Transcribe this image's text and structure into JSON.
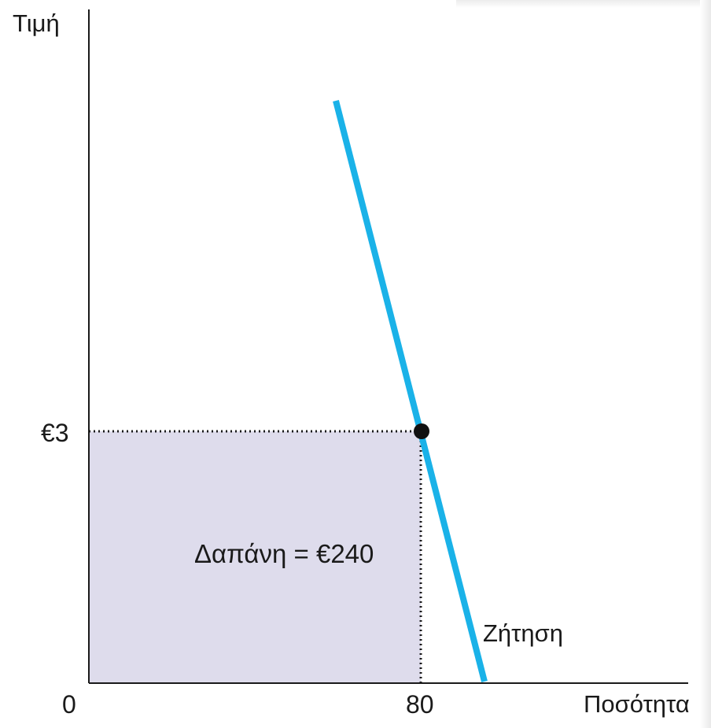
{
  "chart_data": {
    "type": "line",
    "ylabel": "Τιμή",
    "xlabel": "Ποσότητα",
    "origin_label": "0",
    "price_tick_label": "€3",
    "quantity_tick_label": "80",
    "series": [
      {
        "name": "Ζήτηση",
        "x": [
          70,
          82
        ],
        "y": [
          13,
          0
        ]
      }
    ],
    "point": {
      "x": 80,
      "y": 3
    },
    "shaded_area": {
      "label": "Δαπάνη = €240",
      "x_range": [
        0,
        80
      ],
      "y_range": [
        0,
        3
      ]
    },
    "xlim": [
      0,
      115
    ],
    "ylim": [
      0,
      16
    ],
    "colors": {
      "demand_line": "#1ab2e8",
      "shade": "#dedcec",
      "axis": "#1a1a1a",
      "point": "#111111"
    }
  }
}
